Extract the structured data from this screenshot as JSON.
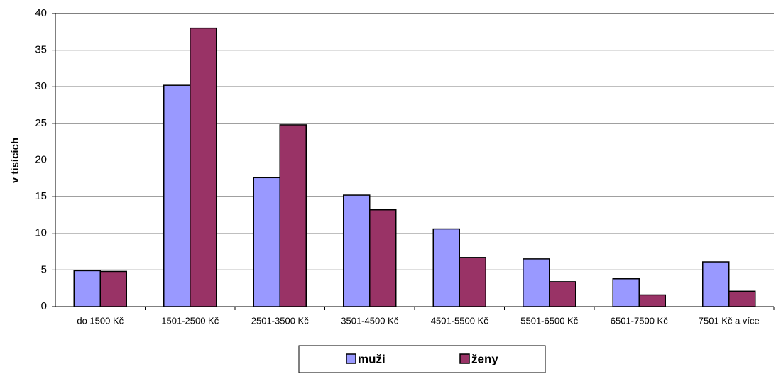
{
  "chart_data": {
    "type": "bar",
    "ylabel": "v tisících",
    "categories": [
      "do 1500 Kč",
      "1501-2500 Kč",
      "2501-3500 Kč",
      "3501-4500 Kč",
      "4501-5500 Kč",
      "5501-6500 Kč",
      "6501-7500 Kč",
      "7501 Kč a více"
    ],
    "series": [
      {
        "name": "muži",
        "color": "#9999ff",
        "values": [
          4.9,
          30.2,
          17.6,
          15.2,
          10.6,
          6.5,
          3.8,
          6.1
        ]
      },
      {
        "name": "ženy",
        "color": "#993366",
        "values": [
          4.8,
          38.0,
          24.8,
          13.2,
          6.7,
          3.4,
          1.6,
          2.1
        ]
      }
    ],
    "ylim": [
      0,
      40
    ],
    "yticks": [
      0,
      5,
      10,
      15,
      20,
      25,
      30,
      35,
      40
    ],
    "grid": true,
    "legend": "bottom"
  }
}
